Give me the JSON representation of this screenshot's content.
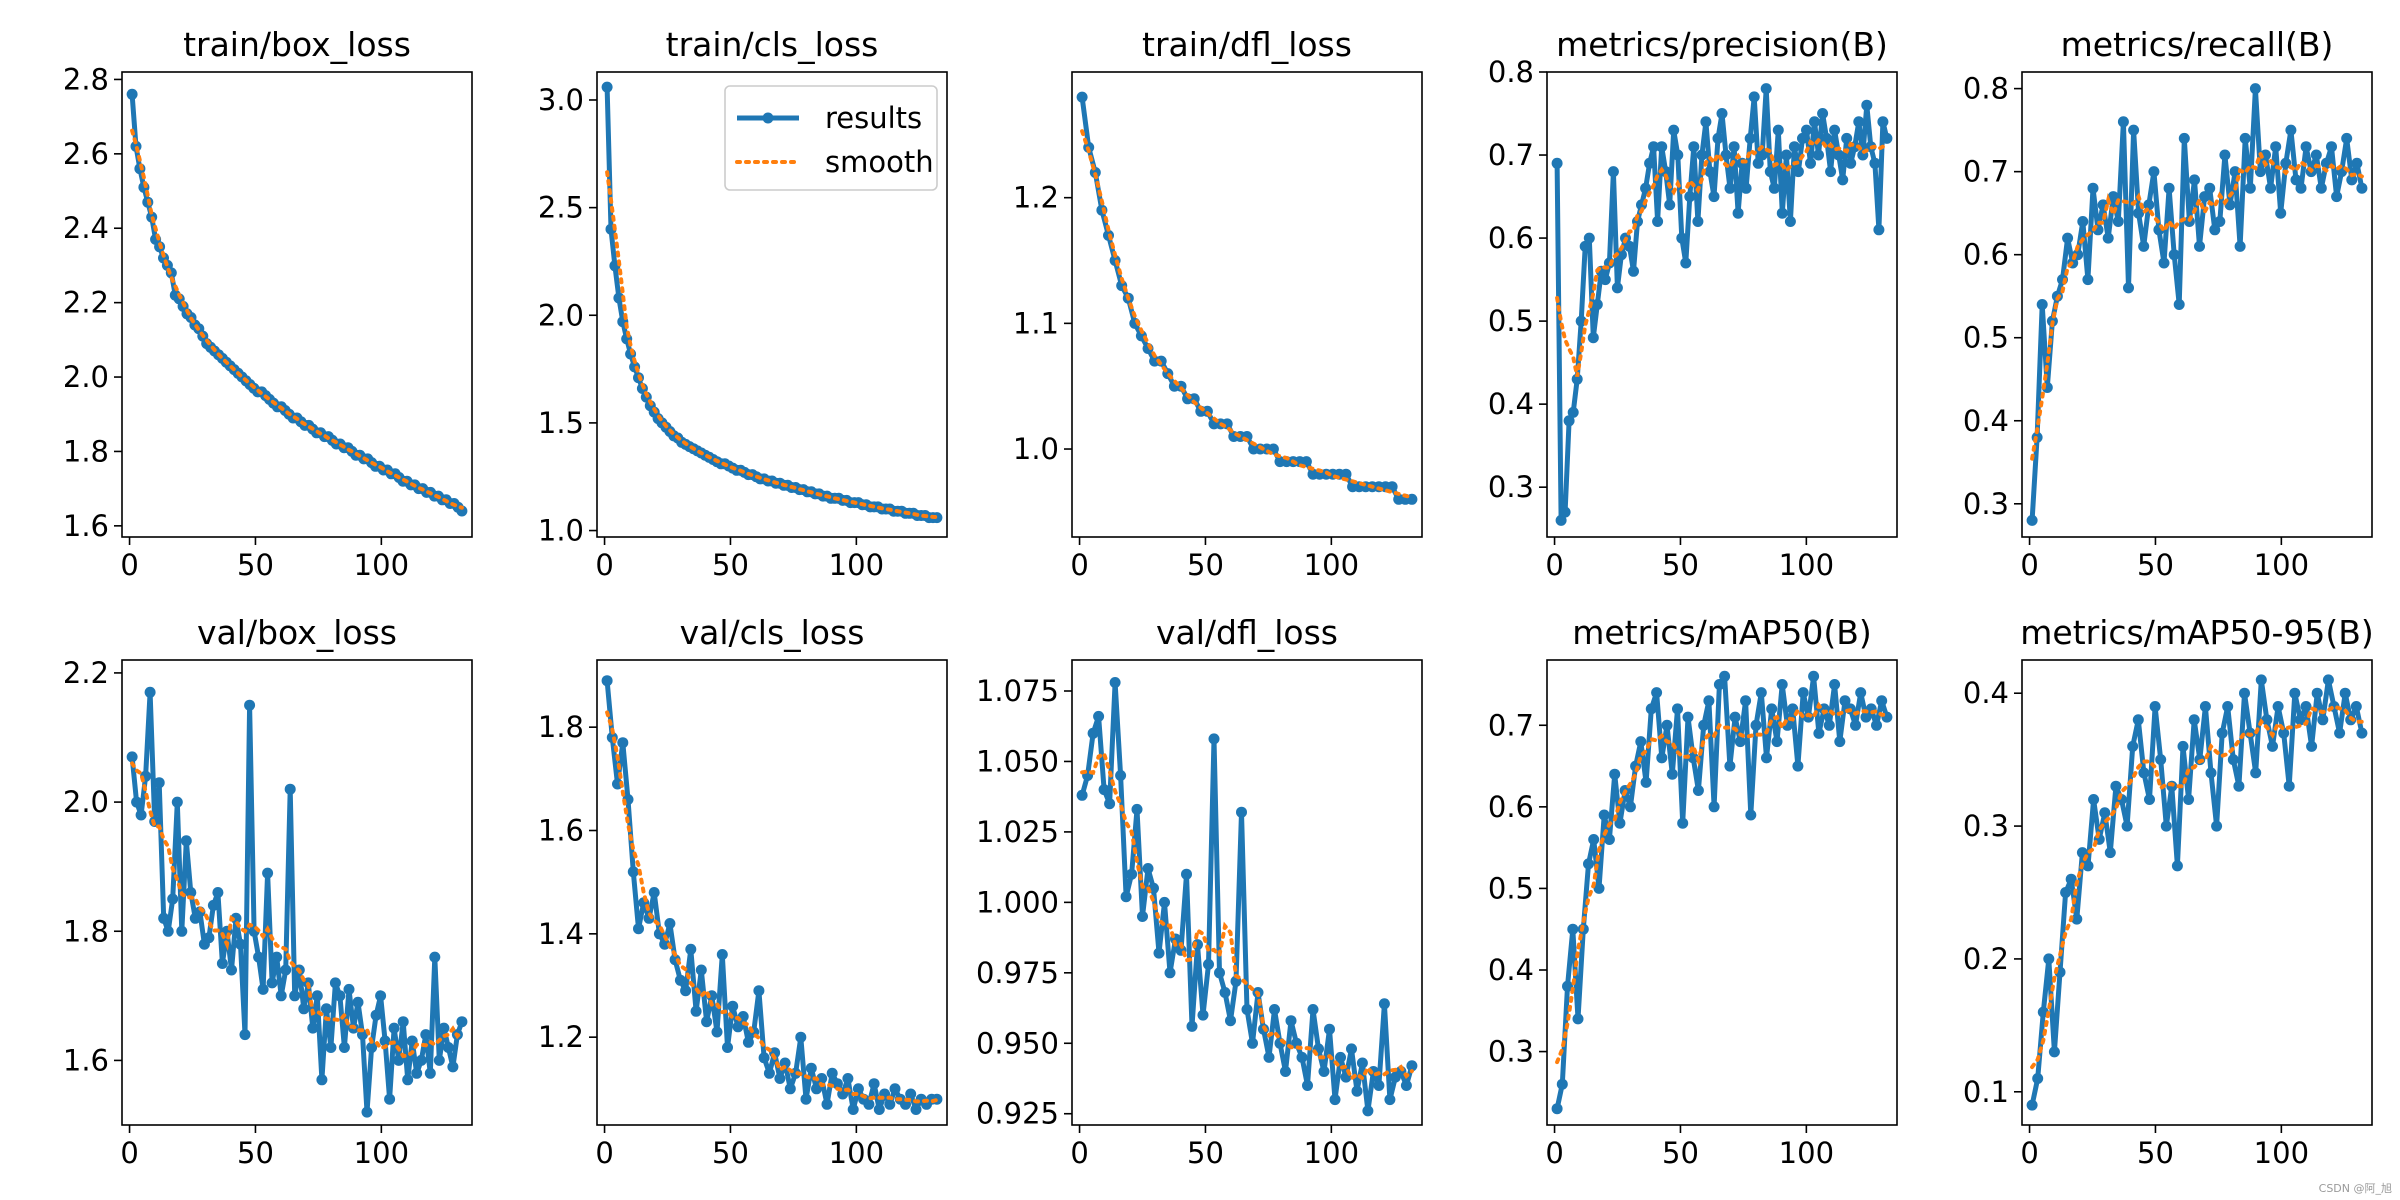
{
  "colors": {
    "results": "#1f77b4",
    "smooth": "#ff7f0e",
    "axis": "#000000"
  },
  "legend": {
    "results": "results",
    "smooth": "smooth"
  },
  "watermark": "CSDN @阿_旭",
  "chart_data": [
    {
      "type": "line",
      "title": "train/box_loss",
      "xlim": [
        -3,
        136
      ],
      "ylim": [
        1.57,
        2.82
      ],
      "xticks": [
        0,
        50,
        100
      ],
      "yticks": [
        1.6,
        1.8,
        2.0,
        2.2,
        2.4,
        2.6,
        2.8
      ],
      "ytick_labels": [
        "1.6",
        "1.8",
        "2.0",
        "2.2",
        "2.4",
        "2.6",
        "2.8"
      ],
      "series": [
        {
          "name": "results",
          "values": [
            2.76,
            2.62,
            2.56,
            2.51,
            2.47,
            2.43,
            2.37,
            2.35,
            2.32,
            2.3,
            2.28,
            2.22,
            2.21,
            2.19,
            2.17,
            2.16,
            2.14,
            2.13,
            2.11,
            2.09,
            2.08,
            2.07,
            2.06,
            2.05,
            2.04,
            2.03,
            2.02,
            2.01,
            2.0,
            1.99,
            1.98,
            1.97,
            1.96,
            1.96,
            1.95,
            1.94,
            1.93,
            1.92,
            1.92,
            1.91,
            1.9,
            1.89,
            1.89,
            1.88,
            1.87,
            1.87,
            1.86,
            1.85,
            1.85,
            1.84,
            1.84,
            1.83,
            1.82,
            1.82,
            1.81,
            1.81,
            1.8,
            1.79,
            1.79,
            1.78,
            1.78,
            1.77,
            1.76,
            1.76,
            1.75,
            1.75,
            1.74,
            1.74,
            1.73,
            1.72,
            1.72,
            1.71,
            1.71,
            1.7,
            1.7,
            1.69,
            1.69,
            1.68,
            1.68,
            1.67,
            1.67,
            1.66,
            1.66,
            1.65,
            1.64
          ]
        }
      ]
    },
    {
      "type": "line",
      "title": "train/cls_loss",
      "xlim": [
        -3,
        136
      ],
      "ylim": [
        0.97,
        3.13
      ],
      "xticks": [
        0,
        50,
        100
      ],
      "yticks": [
        1.0,
        1.5,
        2.0,
        2.5,
        3.0
      ],
      "ytick_labels": [
        "1.0",
        "1.5",
        "2.0",
        "2.5",
        "3.0"
      ],
      "legend": true,
      "series": [
        {
          "name": "results",
          "values": [
            3.06,
            2.4,
            2.23,
            2.08,
            1.97,
            1.89,
            1.82,
            1.76,
            1.71,
            1.66,
            1.62,
            1.58,
            1.55,
            1.52,
            1.5,
            1.48,
            1.46,
            1.44,
            1.43,
            1.41,
            1.4,
            1.39,
            1.38,
            1.37,
            1.36,
            1.35,
            1.34,
            1.33,
            1.32,
            1.31,
            1.31,
            1.3,
            1.29,
            1.28,
            1.28,
            1.27,
            1.26,
            1.26,
            1.25,
            1.24,
            1.24,
            1.23,
            1.23,
            1.22,
            1.22,
            1.21,
            1.21,
            1.2,
            1.2,
            1.19,
            1.19,
            1.18,
            1.18,
            1.17,
            1.17,
            1.16,
            1.16,
            1.15,
            1.15,
            1.15,
            1.14,
            1.14,
            1.13,
            1.13,
            1.13,
            1.12,
            1.12,
            1.11,
            1.11,
            1.11,
            1.1,
            1.1,
            1.1,
            1.09,
            1.09,
            1.09,
            1.08,
            1.08,
            1.08,
            1.07,
            1.07,
            1.07,
            1.06,
            1.06,
            1.06
          ]
        }
      ]
    },
    {
      "type": "line",
      "title": "train/dfl_loss",
      "xlim": [
        -3,
        136
      ],
      "ylim": [
        0.93,
        1.3
      ],
      "xticks": [
        0,
        50,
        100
      ],
      "yticks": [
        1.0,
        1.1,
        1.2
      ],
      "ytick_labels": [
        "1.0",
        "1.1",
        "1.2"
      ],
      "series": [
        {
          "name": "results",
          "values": [
            1.28,
            1.24,
            1.22,
            1.19,
            1.17,
            1.15,
            1.13,
            1.12,
            1.1,
            1.09,
            1.08,
            1.07,
            1.07,
            1.06,
            1.05,
            1.05,
            1.04,
            1.04,
            1.03,
            1.03,
            1.02,
            1.02,
            1.02,
            1.01,
            1.01,
            1.01,
            1.0,
            1.0,
            1.0,
            1.0,
            0.99,
            0.99,
            0.99,
            0.99,
            0.99,
            0.98,
            0.98,
            0.98,
            0.98,
            0.98,
            0.98,
            0.97,
            0.97,
            0.97,
            0.97,
            0.97,
            0.97,
            0.97,
            0.96,
            0.96,
            0.96
          ]
        }
      ]
    },
    {
      "type": "line",
      "title": "metrics/precision(B)",
      "xlim": [
        -3,
        136
      ],
      "ylim": [
        0.24,
        0.8
      ],
      "xticks": [
        0,
        50,
        100
      ],
      "yticks": [
        0.3,
        0.4,
        0.5,
        0.6,
        0.7,
        0.8
      ],
      "ytick_labels": [
        "0.3",
        "0.4",
        "0.5",
        "0.6",
        "0.7",
        "0.8"
      ],
      "series": [
        {
          "name": "results",
          "values": [
            0.69,
            0.26,
            0.27,
            0.38,
            0.39,
            0.43,
            0.5,
            0.59,
            0.6,
            0.48,
            0.52,
            0.56,
            0.55,
            0.57,
            0.68,
            0.54,
            0.58,
            0.6,
            0.59,
            0.56,
            0.62,
            0.64,
            0.66,
            0.69,
            0.71,
            0.62,
            0.71,
            0.68,
            0.64,
            0.73,
            0.7,
            0.6,
            0.57,
            0.65,
            0.71,
            0.62,
            0.7,
            0.74,
            0.68,
            0.65,
            0.72,
            0.75,
            0.7,
            0.66,
            0.71,
            0.63,
            0.69,
            0.66,
            0.72,
            0.77,
            0.69,
            0.7,
            0.78,
            0.68,
            0.66,
            0.73,
            0.63,
            0.7,
            0.62,
            0.71,
            0.68,
            0.72,
            0.73,
            0.69,
            0.74,
            0.7,
            0.75,
            0.72,
            0.68,
            0.73,
            0.7,
            0.67,
            0.72,
            0.69,
            0.71,
            0.74,
            0.7,
            0.76,
            0.71,
            0.69,
            0.61,
            0.74,
            0.72
          ]
        }
      ]
    },
    {
      "type": "line",
      "title": "metrics/recall(B)",
      "xlim": [
        -3,
        136
      ],
      "ylim": [
        0.26,
        0.82
      ],
      "xticks": [
        0,
        50,
        100
      ],
      "yticks": [
        0.3,
        0.4,
        0.5,
        0.6,
        0.7,
        0.8
      ],
      "ytick_labels": [
        "0.3",
        "0.4",
        "0.5",
        "0.6",
        "0.7",
        "0.8"
      ],
      "series": [
        {
          "name": "results",
          "values": [
            0.28,
            0.38,
            0.54,
            0.44,
            0.52,
            0.55,
            0.57,
            0.62,
            0.59,
            0.6,
            0.64,
            0.57,
            0.68,
            0.63,
            0.66,
            0.62,
            0.67,
            0.64,
            0.76,
            0.56,
            0.75,
            0.65,
            0.61,
            0.66,
            0.7,
            0.63,
            0.59,
            0.68,
            0.6,
            0.54,
            0.74,
            0.64,
            0.69,
            0.61,
            0.67,
            0.68,
            0.63,
            0.64,
            0.72,
            0.66,
            0.7,
            0.61,
            0.74,
            0.68,
            0.8,
            0.7,
            0.72,
            0.68,
            0.73,
            0.65,
            0.71,
            0.75,
            0.69,
            0.68,
            0.73,
            0.7,
            0.72,
            0.68,
            0.71,
            0.73,
            0.67,
            0.7,
            0.74,
            0.69,
            0.71,
            0.68
          ]
        }
      ]
    },
    {
      "type": "line",
      "title": "val/box_loss",
      "xlim": [
        -3,
        136
      ],
      "ylim": [
        1.5,
        2.22
      ],
      "xticks": [
        0,
        50,
        100
      ],
      "yticks": [
        1.6,
        1.8,
        2.0,
        2.2
      ],
      "ytick_labels": [
        "1.6",
        "1.8",
        "2.0",
        "2.2"
      ],
      "series": [
        {
          "name": "results",
          "values": [
            2.07,
            2.0,
            1.98,
            2.04,
            2.17,
            1.97,
            2.03,
            1.82,
            1.8,
            1.85,
            2.0,
            1.8,
            1.94,
            1.86,
            1.82,
            1.83,
            1.78,
            1.79,
            1.84,
            1.86,
            1.75,
            1.8,
            1.74,
            1.82,
            1.78,
            1.64,
            2.15,
            1.8,
            1.76,
            1.71,
            1.89,
            1.72,
            1.76,
            1.7,
            1.74,
            2.02,
            1.7,
            1.74,
            1.68,
            1.72,
            1.65,
            1.7,
            1.57,
            1.68,
            1.62,
            1.72,
            1.7,
            1.62,
            1.71,
            1.65,
            1.69,
            1.64,
            1.52,
            1.62,
            1.67,
            1.7,
            1.63,
            1.54,
            1.65,
            1.6,
            1.66,
            1.57,
            1.63,
            1.58,
            1.6,
            1.64,
            1.58,
            1.76,
            1.6,
            1.65,
            1.62,
            1.59,
            1.64,
            1.66
          ]
        }
      ]
    },
    {
      "type": "line",
      "title": "val/cls_loss",
      "xlim": [
        -3,
        136
      ],
      "ylim": [
        1.03,
        1.93
      ],
      "xticks": [
        0,
        50,
        100
      ],
      "yticks": [
        1.2,
        1.4,
        1.6,
        1.8
      ],
      "ytick_labels": [
        "1.2",
        "1.4",
        "1.6",
        "1.8"
      ],
      "series": [
        {
          "name": "results",
          "values": [
            1.89,
            1.78,
            1.69,
            1.77,
            1.66,
            1.52,
            1.41,
            1.46,
            1.43,
            1.48,
            1.4,
            1.38,
            1.42,
            1.35,
            1.31,
            1.29,
            1.37,
            1.25,
            1.33,
            1.23,
            1.28,
            1.21,
            1.36,
            1.18,
            1.26,
            1.22,
            1.24,
            1.19,
            1.21,
            1.29,
            1.16,
            1.13,
            1.17,
            1.12,
            1.15,
            1.1,
            1.13,
            1.2,
            1.08,
            1.14,
            1.1,
            1.12,
            1.07,
            1.13,
            1.11,
            1.09,
            1.12,
            1.06,
            1.1,
            1.08,
            1.07,
            1.11,
            1.06,
            1.09,
            1.07,
            1.1,
            1.08,
            1.07,
            1.09,
            1.06,
            1.08,
            1.07,
            1.08,
            1.08
          ]
        }
      ]
    },
    {
      "type": "line",
      "title": "val/dfl_loss",
      "xlim": [
        -3,
        136
      ],
      "ylim": [
        0.921,
        1.086
      ],
      "xticks": [
        0,
        50,
        100
      ],
      "yticks": [
        0.925,
        0.95,
        0.975,
        1.0,
        1.025,
        1.05,
        1.075
      ],
      "ytick_labels": [
        "0.925",
        "0.950",
        "0.975",
        "1.000",
        "1.025",
        "1.050",
        "1.075"
      ],
      "series": [
        {
          "name": "results",
          "values": [
            1.038,
            1.045,
            1.06,
            1.066,
            1.04,
            1.035,
            1.078,
            1.045,
            1.002,
            1.01,
            1.033,
            0.995,
            1.012,
            1.005,
            0.982,
            1.0,
            0.975,
            0.987,
            0.983,
            1.01,
            0.956,
            0.985,
            0.96,
            0.978,
            1.058,
            0.975,
            0.968,
            0.958,
            0.972,
            1.032,
            0.962,
            0.95,
            0.968,
            0.955,
            0.945,
            0.962,
            0.95,
            0.94,
            0.958,
            0.95,
            0.945,
            0.935,
            0.962,
            0.948,
            0.94,
            0.955,
            0.93,
            0.945,
            0.938,
            0.948,
            0.933,
            0.943,
            0.926,
            0.94,
            0.935,
            0.964,
            0.93,
            0.938,
            0.94,
            0.935,
            0.942
          ]
        }
      ]
    },
    {
      "type": "line",
      "title": "metrics/mAP50(B)",
      "xlim": [
        -3,
        136
      ],
      "ylim": [
        0.21,
        0.78
      ],
      "xticks": [
        0,
        50,
        100
      ],
      "yticks": [
        0.3,
        0.4,
        0.5,
        0.6,
        0.7
      ],
      "ytick_labels": [
        "0.3",
        "0.4",
        "0.5",
        "0.6",
        "0.7"
      ],
      "series": [
        {
          "name": "results",
          "values": [
            0.23,
            0.26,
            0.38,
            0.45,
            0.34,
            0.45,
            0.53,
            0.56,
            0.5,
            0.59,
            0.56,
            0.64,
            0.58,
            0.62,
            0.6,
            0.65,
            0.68,
            0.63,
            0.72,
            0.74,
            0.66,
            0.7,
            0.64,
            0.72,
            0.58,
            0.71,
            0.66,
            0.62,
            0.7,
            0.73,
            0.6,
            0.75,
            0.76,
            0.65,
            0.71,
            0.68,
            0.73,
            0.59,
            0.7,
            0.74,
            0.66,
            0.72,
            0.68,
            0.75,
            0.7,
            0.72,
            0.65,
            0.74,
            0.71,
            0.76,
            0.69,
            0.72,
            0.7,
            0.75,
            0.68,
            0.73,
            0.72,
            0.7,
            0.74,
            0.71,
            0.72,
            0.7,
            0.73,
            0.71
          ]
        }
      ]
    },
    {
      "type": "line",
      "title": "metrics/mAP50-95(B)",
      "xlim": [
        -3,
        136
      ],
      "ylim": [
        0.075,
        0.425
      ],
      "xticks": [
        0,
        50,
        100
      ],
      "yticks": [
        0.1,
        0.2,
        0.3,
        0.4
      ],
      "ytick_labels": [
        "0.1",
        "0.2",
        "0.3",
        "0.4"
      ],
      "series": [
        {
          "name": "results",
          "values": [
            0.09,
            0.11,
            0.16,
            0.2,
            0.13,
            0.19,
            0.25,
            0.26,
            0.23,
            0.28,
            0.27,
            0.32,
            0.29,
            0.31,
            0.28,
            0.33,
            0.32,
            0.3,
            0.36,
            0.38,
            0.34,
            0.32,
            0.39,
            0.35,
            0.3,
            0.33,
            0.27,
            0.36,
            0.32,
            0.38,
            0.35,
            0.39,
            0.34,
            0.3,
            0.37,
            0.39,
            0.35,
            0.33,
            0.4,
            0.37,
            0.34,
            0.41,
            0.38,
            0.36,
            0.39,
            0.37,
            0.33,
            0.4,
            0.38,
            0.39,
            0.36,
            0.4,
            0.38,
            0.41,
            0.39,
            0.37,
            0.4,
            0.38,
            0.39,
            0.37
          ]
        }
      ]
    }
  ]
}
